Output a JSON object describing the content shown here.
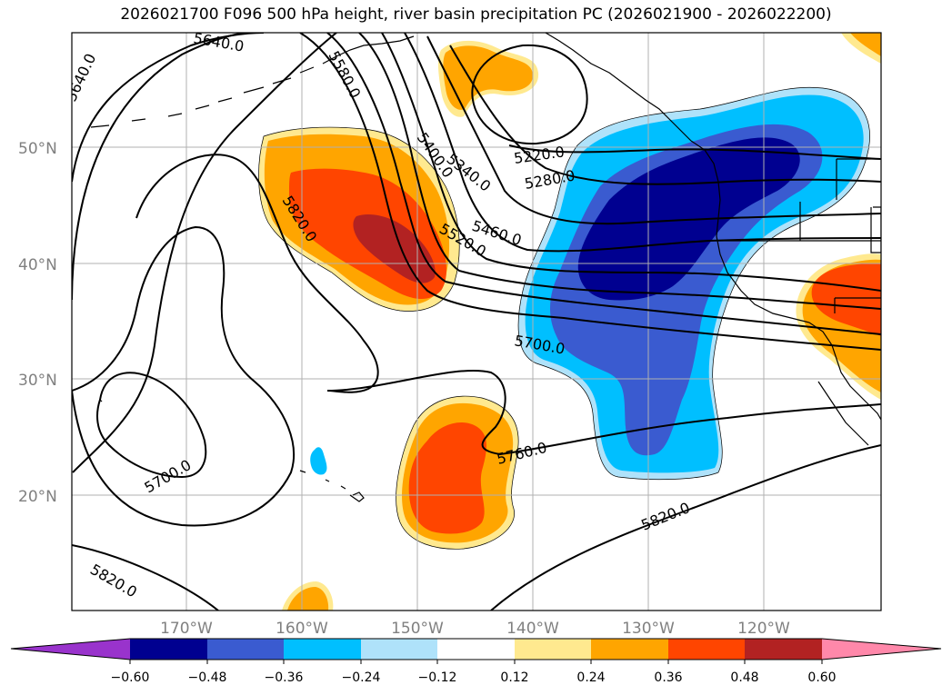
{
  "title": "2026021700 F096 500 hPa height, river basin precipitation PC (2026021900 - 2026022200)",
  "latitude_labels": [
    "50°N",
    "40°N",
    "30°N",
    "20°N"
  ],
  "longitude_labels": [
    "170°W",
    "160°W",
    "150°W",
    "140°W",
    "130°W",
    "120°W"
  ],
  "colorbar": {
    "tick_labels": [
      "−0.60",
      "−0.48",
      "−0.36",
      "−0.24",
      "−0.12",
      "0.12",
      "0.24",
      "0.36",
      "0.48",
      "0.60"
    ],
    "colors": [
      "#9933cc",
      "#000090",
      "#3a5bd0",
      "#00bfff",
      "#afe2fa",
      "#ffffff",
      "#ffe98f",
      "#ffa500",
      "#ff4500",
      "#b22222",
      "#ff88aa"
    ]
  },
  "contour_labels": [
    {
      "id": "c5640-nw",
      "text": "5640.0"
    },
    {
      "id": "c5640-top",
      "text": "5640.0"
    },
    {
      "id": "c5580",
      "text": "5580.0"
    },
    {
      "id": "c5220",
      "text": "5220.0"
    },
    {
      "id": "c5280",
      "text": "5280.0"
    },
    {
      "id": "c5340",
      "text": "5340.0"
    },
    {
      "id": "c5400",
      "text": "5400.0"
    },
    {
      "id": "c5460",
      "text": "5460.0"
    },
    {
      "id": "c5520",
      "text": "5520.0"
    },
    {
      "id": "c5820-w",
      "text": "5820.0"
    },
    {
      "id": "c5700-e",
      "text": "5700.0"
    },
    {
      "id": "c5760",
      "text": "5760.0"
    },
    {
      "id": "c5700-sw",
      "text": "5700.0"
    },
    {
      "id": "c5820-s",
      "text": "5820.0"
    },
    {
      "id": "c5820-sw",
      "text": "5820.0"
    }
  ]
}
